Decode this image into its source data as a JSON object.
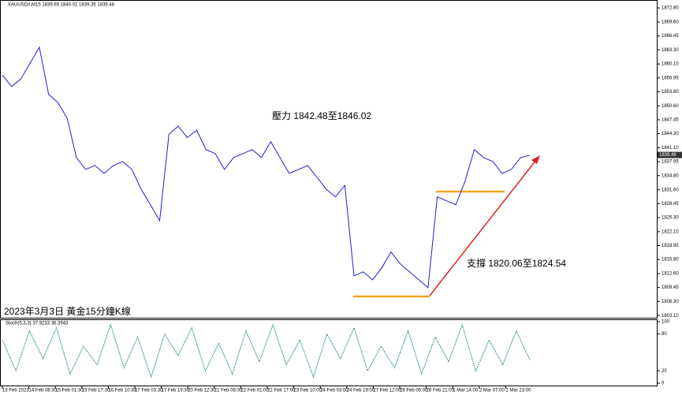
{
  "chart_data": {
    "type": "line",
    "title": "XAUUSD#,M15  1839.65 1840.02 1839.35 1839.48",
    "annotations": [
      "壓力 1842.48至1846.02",
      "支撐 1820.06至1824.54",
      "2023年3月3日 黃金15分鐘K線"
    ],
    "last_price": 1839.48,
    "ylim": [
      1802.6,
      1874.6
    ],
    "yticks": [
      {
        "value": 1872.8,
        "label": "1872.80"
      },
      {
        "value": 1869.6,
        "label": "1869.60"
      },
      1866.45,
      {
        "value": 1863.3,
        "label": "1863.30"
      },
      {
        "value": 1860.1,
        "label": "1860.10"
      },
      1856.95,
      {
        "value": 1853.8,
        "label": "1853.80"
      },
      {
        "value": 1850.6,
        "label": "1850.60"
      },
      1847.45,
      {
        "value": 1844.3,
        "label": "1844.30"
      },
      {
        "value": 1841.1,
        "label": "1841.10"
      },
      1837.95,
      {
        "value": 1834.8,
        "label": "1834.80"
      },
      {
        "value": 1831.6,
        "label": "1831.60"
      },
      1828.45,
      {
        "value": 1825.3,
        "label": "1825.30"
      },
      {
        "value": 1822.1,
        "label": "1822.10"
      },
      1818.95,
      {
        "value": 1815.8,
        "label": "1815.80"
      },
      {
        "value": 1812.6,
        "label": "1812.60"
      },
      1809.45,
      {
        "value": 1806.3,
        "label": "1806.30"
      },
      {
        "value": 1803.1,
        "label": "1803.10"
      }
    ],
    "x_labels": [
      "13 Feb 2023",
      "14 Feb 08:30",
      "15 Feb 01:30",
      "15 Feb 17:30",
      "16 Feb 10:30",
      "17 Feb 03:30",
      "17 Feb 19:30",
      "20 Feb 12:30",
      "21 Feb 08:00",
      "22 Feb 01:00",
      "22 Feb 17:00",
      "23 Feb 10:00",
      "24 Feb 03:00",
      "24 Feb 19:00",
      "27 Feb 12:00",
      "28 Feb 05:00",
      "28 Feb 21:00",
      "1 Mar 14:00",
      "2 Mar 07:00",
      "2 Mar 23:00"
    ],
    "series": [
      {
        "color": "#1f1fd6",
        "values": [
          1857.6,
          1855.0,
          1856.7,
          1860.3,
          1863.9,
          1853.2,
          1851.4,
          1847.8,
          1838.9,
          1836.2,
          1837.1,
          1835.3,
          1837.1,
          1838.0,
          1836.2,
          1831.7,
          1828.2,
          1824.6,
          1844.2,
          1846.0,
          1843.4,
          1845.1,
          1840.7,
          1839.8,
          1836.2,
          1838.9,
          1839.8,
          1840.7,
          1838.9,
          1842.5,
          1838.9,
          1835.3,
          1836.2,
          1837.1,
          1834.4,
          1831.7,
          1830.0,
          1832.6,
          1812.1,
          1813.0,
          1811.2,
          1813.9,
          1817.5,
          1814.8,
          1813.0,
          1811.2,
          1809.4,
          1830.0,
          1829.1,
          1828.2,
          1833.5,
          1840.7,
          1838.9,
          1838.0,
          1835.3,
          1836.2,
          1838.9,
          1839.4
        ]
      }
    ],
    "stoch": {
      "title": "Stoch(5,3,3) 37.9233 36.3943",
      "color": "#2e8b8b",
      "ylim": [
        0,
        100
      ],
      "yticks": [
        100,
        80,
        20,
        0
      ],
      "values": [
        70,
        20,
        85,
        40,
        90,
        15,
        60,
        30,
        95,
        25,
        75,
        10,
        80,
        45,
        90,
        20,
        65,
        15,
        85,
        35,
        95,
        30,
        70,
        10,
        80,
        40,
        90,
        20,
        60,
        25,
        85,
        15,
        75,
        35,
        95,
        20,
        70,
        30,
        85,
        38
      ]
    }
  }
}
